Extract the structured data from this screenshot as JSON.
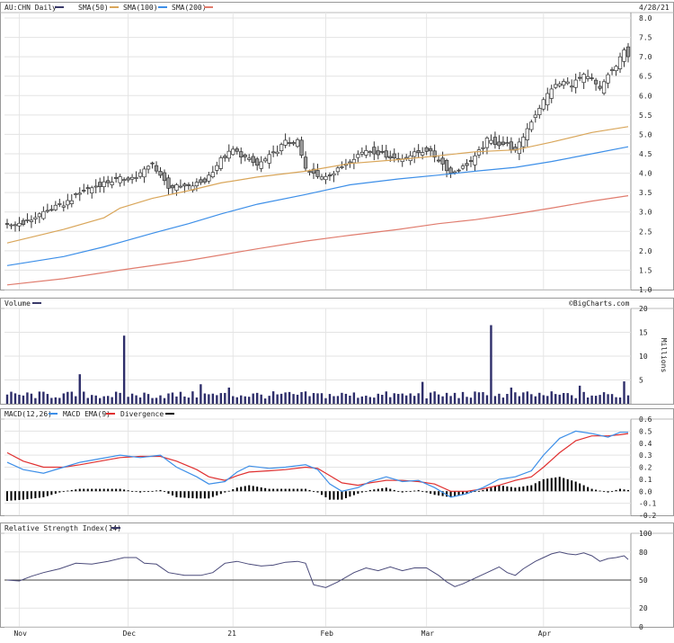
{
  "chart_data": [
    {
      "type": "candlestick",
      "ticker": "AU:CHN",
      "period": "Daily",
      "date_label": "4/28/21",
      "legend": [
        {
          "label": "AU:CHN Daily",
          "color": "#3a3a6a"
        },
        {
          "label": "SMA(50)",
          "color": "#d9a65a"
        },
        {
          "label": "SMA(100)",
          "color": "#3d8fe8"
        },
        {
          "label": "SMA(200)",
          "color": "#e07c6e"
        }
      ],
      "ylim": [
        1.0,
        8.0
      ],
      "yticks": [
        "8.0",
        "7.5",
        "7.0",
        "6.5",
        "6.0",
        "5.5",
        "5.0",
        "4.5",
        "4.0",
        "3.5",
        "3.0",
        "2.5",
        "2.0",
        "1.5",
        "1.0"
      ],
      "ytick_values": [
        8.0,
        7.5,
        7.0,
        6.5,
        6.0,
        5.5,
        5.0,
        4.5,
        4.0,
        3.5,
        3.0,
        2.5,
        2.0,
        1.5,
        1.0
      ],
      "close_anchors": [
        [
          0,
          2.65
        ],
        [
          5,
          2.75
        ],
        [
          9,
          3.0
        ],
        [
          14,
          3.2
        ],
        [
          19,
          3.55
        ],
        [
          24,
          3.75
        ],
        [
          28,
          3.85
        ],
        [
          32,
          3.9
        ],
        [
          36,
          4.25
        ],
        [
          38,
          3.95
        ],
        [
          40,
          3.65
        ],
        [
          45,
          3.65
        ],
        [
          49,
          3.8
        ],
        [
          53,
          4.35
        ],
        [
          56,
          4.6
        ],
        [
          59,
          4.4
        ],
        [
          62,
          4.2
        ],
        [
          66,
          4.5
        ],
        [
          69,
          4.8
        ],
        [
          72,
          4.8
        ],
        [
          74,
          4.1
        ],
        [
          77,
          3.9
        ],
        [
          81,
          4.0
        ],
        [
          85,
          4.35
        ],
        [
          89,
          4.6
        ],
        [
          93,
          4.5
        ],
        [
          97,
          4.35
        ],
        [
          101,
          4.5
        ],
        [
          104,
          4.6
        ],
        [
          107,
          4.35
        ],
        [
          110,
          4.0
        ],
        [
          113,
          4.15
        ],
        [
          116,
          4.4
        ],
        [
          119,
          4.85
        ],
        [
          122,
          4.75
        ],
        [
          124,
          4.75
        ],
        [
          126,
          4.55
        ],
        [
          128,
          4.95
        ],
        [
          130,
          5.35
        ],
        [
          132,
          5.7
        ],
        [
          135,
          6.2
        ],
        [
          138,
          6.35
        ],
        [
          140,
          6.3
        ],
        [
          143,
          6.5
        ],
        [
          145,
          6.4
        ],
        [
          147,
          6.15
        ],
        [
          149,
          6.55
        ],
        [
          151,
          6.75
        ],
        [
          153,
          7.15
        ],
        [
          154,
          7.05
        ]
      ],
      "sma50": [
        [
          0,
          2.2
        ],
        [
          14,
          2.55
        ],
        [
          24,
          2.85
        ],
        [
          28,
          3.1
        ],
        [
          36,
          3.35
        ],
        [
          45,
          3.55
        ],
        [
          53,
          3.75
        ],
        [
          62,
          3.9
        ],
        [
          74,
          4.05
        ],
        [
          85,
          4.25
        ],
        [
          97,
          4.35
        ],
        [
          107,
          4.45
        ],
        [
          116,
          4.55
        ],
        [
          126,
          4.6
        ],
        [
          135,
          4.8
        ],
        [
          145,
          5.05
        ],
        [
          154,
          5.2
        ]
      ],
      "sma100": [
        [
          0,
          1.62
        ],
        [
          14,
          1.85
        ],
        [
          24,
          2.1
        ],
        [
          36,
          2.45
        ],
        [
          45,
          2.7
        ],
        [
          53,
          2.95
        ],
        [
          62,
          3.2
        ],
        [
          74,
          3.45
        ],
        [
          85,
          3.7
        ],
        [
          97,
          3.85
        ],
        [
          107,
          3.95
        ],
        [
          116,
          4.05
        ],
        [
          126,
          4.15
        ],
        [
          135,
          4.3
        ],
        [
          145,
          4.5
        ],
        [
          154,
          4.68
        ]
      ],
      "sma200": [
        [
          0,
          1.12
        ],
        [
          14,
          1.28
        ],
        [
          28,
          1.5
        ],
        [
          45,
          1.75
        ],
        [
          62,
          2.05
        ],
        [
          74,
          2.25
        ],
        [
          85,
          2.4
        ],
        [
          97,
          2.55
        ],
        [
          107,
          2.7
        ],
        [
          116,
          2.8
        ],
        [
          126,
          2.95
        ],
        [
          135,
          3.1
        ],
        [
          145,
          3.28
        ],
        [
          154,
          3.42
        ]
      ],
      "x_labels": [
        {
          "label": "Nov",
          "day": 3
        },
        {
          "label": "Dec",
          "day": 30
        },
        {
          "label": "21",
          "day": 56
        },
        {
          "label": "Feb",
          "day": 79
        },
        {
          "label": "Mar",
          "day": 104
        },
        {
          "label": "Apr",
          "day": 133
        }
      ]
    },
    {
      "type": "bar",
      "title": "Volume",
      "credit": "©BigCharts.com",
      "ylabel": "Millions",
      "ylim": [
        0,
        20
      ],
      "yticks": [
        "20",
        "15",
        "10",
        "5"
      ],
      "ytick_values": [
        20,
        15,
        10,
        5
      ],
      "spikes": [
        [
          18,
          6.2
        ],
        [
          29,
          14.3
        ],
        [
          48,
          4.1
        ],
        [
          55,
          3.4
        ],
        [
          103,
          4.6
        ],
        [
          120,
          16.5
        ],
        [
          125,
          3.4
        ],
        [
          142,
          3.8
        ],
        [
          153,
          4.7
        ]
      ],
      "base": 1.6
    },
    {
      "type": "line",
      "title": "MACD(12,26)",
      "legend": [
        {
          "label": "MACD(12,26)",
          "color": "#3d8fe8"
        },
        {
          "label": "MACD EMA(9)",
          "color": "#e03030"
        },
        {
          "label": "Divergence",
          "color": "#000000"
        }
      ],
      "ylim": [
        -0.2,
        0.6
      ],
      "yticks": [
        "0.6",
        "0.5",
        "0.4",
        "0.3",
        "0.2",
        "0.1",
        "0.0",
        "-0.1",
        "-0.2"
      ],
      "ytick_values": [
        0.6,
        0.5,
        0.4,
        0.3,
        0.2,
        0.1,
        0.0,
        -0.1,
        -0.2
      ],
      "macd": [
        [
          0,
          0.24
        ],
        [
          4,
          0.18
        ],
        [
          9,
          0.15
        ],
        [
          14,
          0.2
        ],
        [
          18,
          0.24
        ],
        [
          23,
          0.27
        ],
        [
          28,
          0.3
        ],
        [
          33,
          0.28
        ],
        [
          38,
          0.3
        ],
        [
          42,
          0.2
        ],
        [
          47,
          0.12
        ],
        [
          50,
          0.06
        ],
        [
          54,
          0.08
        ],
        [
          57,
          0.16
        ],
        [
          60,
          0.21
        ],
        [
          65,
          0.19
        ],
        [
          69,
          0.2
        ],
        [
          74,
          0.22
        ],
        [
          77,
          0.18
        ],
        [
          80,
          0.06
        ],
        [
          83,
          0.0
        ],
        [
          87,
          0.03
        ],
        [
          90,
          0.08
        ],
        [
          94,
          0.12
        ],
        [
          98,
          0.08
        ],
        [
          102,
          0.09
        ],
        [
          106,
          0.03
        ],
        [
          110,
          -0.05
        ],
        [
          114,
          -0.02
        ],
        [
          118,
          0.03
        ],
        [
          122,
          0.1
        ],
        [
          126,
          0.12
        ],
        [
          130,
          0.17
        ],
        [
          133,
          0.3
        ],
        [
          137,
          0.44
        ],
        [
          141,
          0.5
        ],
        [
          145,
          0.48
        ],
        [
          149,
          0.45
        ],
        [
          152,
          0.49
        ],
        [
          154,
          0.49
        ]
      ],
      "signal": [
        [
          0,
          0.32
        ],
        [
          4,
          0.25
        ],
        [
          9,
          0.2
        ],
        [
          14,
          0.2
        ],
        [
          18,
          0.22
        ],
        [
          23,
          0.25
        ],
        [
          28,
          0.28
        ],
        [
          33,
          0.29
        ],
        [
          38,
          0.29
        ],
        [
          42,
          0.25
        ],
        [
          47,
          0.18
        ],
        [
          50,
          0.12
        ],
        [
          54,
          0.09
        ],
        [
          57,
          0.13
        ],
        [
          60,
          0.16
        ],
        [
          65,
          0.17
        ],
        [
          69,
          0.18
        ],
        [
          74,
          0.2
        ],
        [
          77,
          0.19
        ],
        [
          80,
          0.13
        ],
        [
          83,
          0.07
        ],
        [
          87,
          0.05
        ],
        [
          90,
          0.07
        ],
        [
          94,
          0.09
        ],
        [
          98,
          0.09
        ],
        [
          102,
          0.08
        ],
        [
          106,
          0.06
        ],
        [
          110,
          0.0
        ],
        [
          114,
          0.0
        ],
        [
          118,
          0.02
        ],
        [
          122,
          0.05
        ],
        [
          126,
          0.09
        ],
        [
          130,
          0.12
        ],
        [
          133,
          0.2
        ],
        [
          137,
          0.32
        ],
        [
          141,
          0.42
        ],
        [
          145,
          0.46
        ],
        [
          149,
          0.46
        ],
        [
          152,
          0.47
        ],
        [
          154,
          0.48
        ]
      ],
      "divergence": [
        [
          0,
          -0.08
        ],
        [
          4,
          -0.07
        ],
        [
          9,
          -0.05
        ],
        [
          14,
          0.0
        ],
        [
          18,
          0.02
        ],
        [
          23,
          0.02
        ],
        [
          28,
          0.02
        ],
        [
          33,
          -0.01
        ],
        [
          38,
          0.01
        ],
        [
          42,
          -0.05
        ],
        [
          47,
          -0.06
        ],
        [
          50,
          -0.06
        ],
        [
          54,
          -0.01
        ],
        [
          57,
          0.03
        ],
        [
          60,
          0.05
        ],
        [
          65,
          0.02
        ],
        [
          69,
          0.02
        ],
        [
          74,
          0.02
        ],
        [
          77,
          -0.01
        ],
        [
          80,
          -0.07
        ],
        [
          83,
          -0.07
        ],
        [
          87,
          -0.02
        ],
        [
          90,
          0.01
        ],
        [
          94,
          0.03
        ],
        [
          98,
          -0.01
        ],
        [
          102,
          0.01
        ],
        [
          106,
          -0.03
        ],
        [
          110,
          -0.05
        ],
        [
          114,
          -0.02
        ],
        [
          118,
          0.01
        ],
        [
          122,
          0.05
        ],
        [
          126,
          0.03
        ],
        [
          130,
          0.05
        ],
        [
          133,
          0.1
        ],
        [
          137,
          0.12
        ],
        [
          141,
          0.08
        ],
        [
          145,
          0.02
        ],
        [
          149,
          -0.01
        ],
        [
          152,
          0.02
        ],
        [
          154,
          0.01
        ]
      ]
    },
    {
      "type": "line",
      "title": "Relative Strength Index(14)",
      "ylim": [
        0,
        100
      ],
      "yticks": [
        "100",
        "80",
        "50",
        "20",
        "0"
      ],
      "ytick_values": [
        100,
        80,
        50,
        20,
        0
      ],
      "reference_line": 50,
      "rsi": [
        [
          0,
          50
        ],
        [
          3,
          49
        ],
        [
          6,
          54
        ],
        [
          9,
          58
        ],
        [
          13,
          62
        ],
        [
          17,
          68
        ],
        [
          21,
          67
        ],
        [
          25,
          70
        ],
        [
          29,
          74
        ],
        [
          32,
          74
        ],
        [
          34,
          68
        ],
        [
          37,
          67
        ],
        [
          40,
          58
        ],
        [
          44,
          55
        ],
        [
          48,
          55
        ],
        [
          51,
          58
        ],
        [
          54,
          68
        ],
        [
          57,
          70
        ],
        [
          60,
          67
        ],
        [
          63,
          65
        ],
        [
          66,
          66
        ],
        [
          69,
          69
        ],
        [
          72,
          70
        ],
        [
          74,
          68
        ],
        [
          76,
          45
        ],
        [
          79,
          42
        ],
        [
          82,
          48
        ],
        [
          86,
          58
        ],
        [
          89,
          63
        ],
        [
          92,
          60
        ],
        [
          95,
          64
        ],
        [
          98,
          60
        ],
        [
          101,
          63
        ],
        [
          104,
          63
        ],
        [
          107,
          55
        ],
        [
          109,
          48
        ],
        [
          111,
          43
        ],
        [
          113,
          46
        ],
        [
          116,
          52
        ],
        [
          119,
          58
        ],
        [
          122,
          64
        ],
        [
          124,
          58
        ],
        [
          126,
          55
        ],
        [
          128,
          62
        ],
        [
          131,
          70
        ],
        [
          133,
          74
        ],
        [
          135,
          78
        ],
        [
          137,
          80
        ],
        [
          139,
          78
        ],
        [
          141,
          77
        ],
        [
          143,
          79
        ],
        [
          145,
          76
        ],
        [
          147,
          70
        ],
        [
          149,
          73
        ],
        [
          151,
          74
        ],
        [
          153,
          76
        ],
        [
          154,
          72
        ]
      ]
    }
  ]
}
